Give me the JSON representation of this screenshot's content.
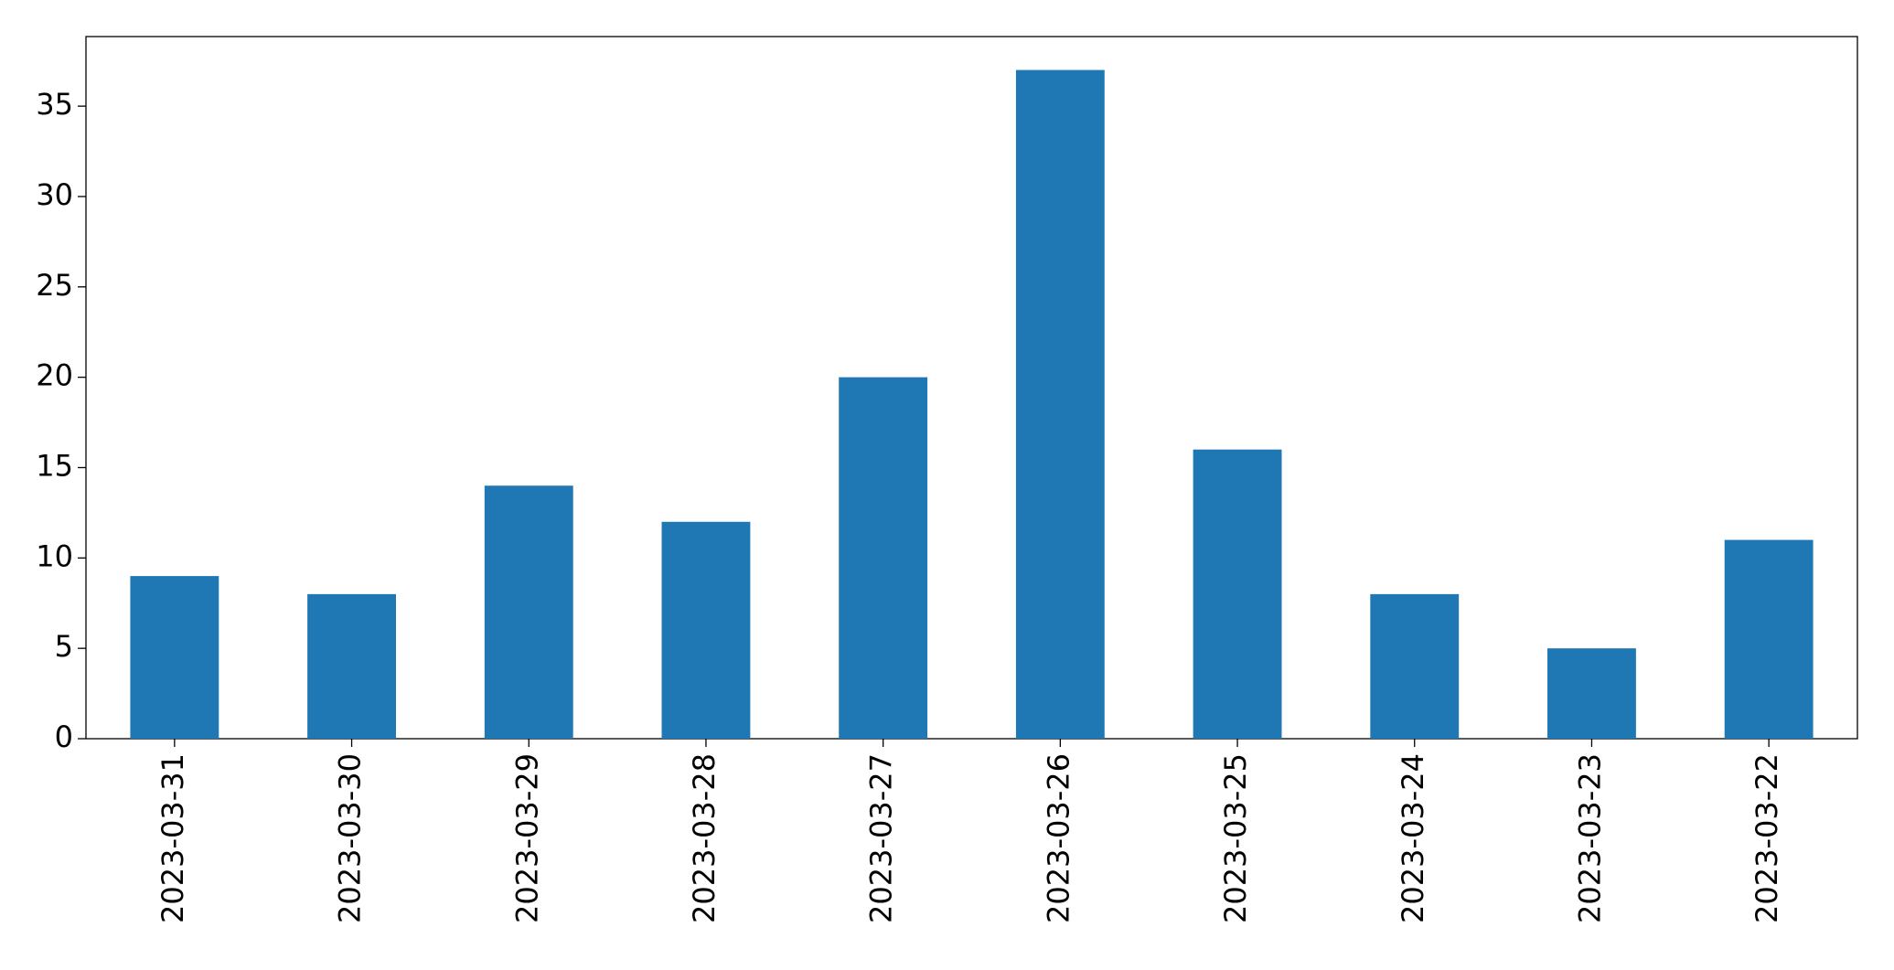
{
  "chart_data": {
    "type": "bar",
    "categories": [
      "2023-03-31",
      "2023-03-30",
      "2023-03-29",
      "2023-03-28",
      "2023-03-27",
      "2023-03-26",
      "2023-03-25",
      "2023-03-24",
      "2023-03-23",
      "2023-03-22"
    ],
    "values": [
      9,
      8,
      14,
      12,
      20,
      37,
      16,
      8,
      5,
      11
    ],
    "color": "#1f77b4",
    "ylim": [
      0,
      38.85
    ],
    "yticks": [
      0,
      5,
      10,
      15,
      20,
      25,
      30,
      35
    ],
    "grid": false
  }
}
